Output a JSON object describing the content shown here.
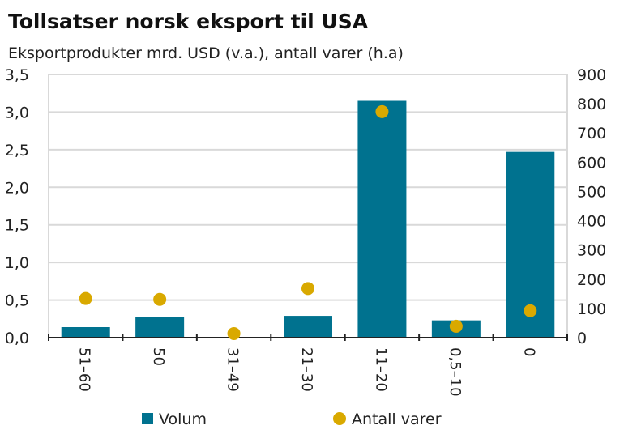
{
  "chart_data": {
    "type": "bar",
    "title": "Tollsatser norsk eksport til USA",
    "subtitle": "Eksportprodukter mrd. USD (v.a.), antall varer (h.a)",
    "categories": [
      "51-60",
      "50",
      "31-49",
      "21-30",
      "11-20",
      "0,5-10",
      "0"
    ],
    "series": [
      {
        "name": "Volum",
        "type": "bar",
        "axis": "left",
        "color": "#00728f",
        "values": [
          0.14,
          0.28,
          0,
          0.29,
          3.15,
          0.23,
          2.47
        ]
      },
      {
        "name": "Antall varer",
        "type": "scatter",
        "axis": "right",
        "color": "#d9a900",
        "values": [
          134,
          131,
          14,
          168,
          773,
          39,
          92
        ]
      }
    ],
    "left_axis": {
      "range": [
        0,
        3.5
      ],
      "ticks": [
        "0,0",
        "0,5",
        "1,0",
        "1,5",
        "2,0",
        "2,5",
        "3,0",
        "3,5"
      ]
    },
    "right_axis": {
      "range": [
        0,
        900
      ],
      "ticks": [
        "0",
        "100",
        "200",
        "300",
        "400",
        "500",
        "600",
        "700",
        "800",
        "900"
      ]
    },
    "grid": true,
    "legend": "bottom"
  }
}
